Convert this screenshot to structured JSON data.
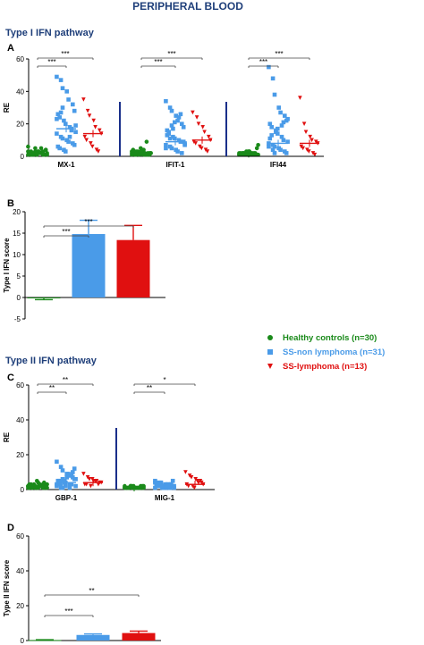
{
  "figure_title": "PERIPHERAL BLOOD",
  "section1_title": "Type I IFN pathway",
  "section2_title": "Type II IFN pathway",
  "colors": {
    "healthy": "#1a8a1a",
    "ss_non": "#4a9be8",
    "ss_lymph": "#e01010",
    "title": "#1f3f7a",
    "axis": "#000000",
    "divider": "#1a2f8a"
  },
  "legend": [
    {
      "label": "Healthy controls (n=30)",
      "marker": "circle",
      "color": "#1a8a1a"
    },
    {
      "label": "SS-non lymphoma (n=31)",
      "marker": "square",
      "color": "#4a9be8"
    },
    {
      "label": "SS-lymphoma (n=13)",
      "marker": "triangle-down",
      "color": "#e01010"
    }
  ],
  "chart_data": [
    {
      "panel": "A",
      "type": "scatter",
      "ylabel": "RE",
      "ylim": [
        0,
        60
      ],
      "yticks": [
        0,
        20,
        40,
        60
      ],
      "groups": [
        {
          "name": "MX-1",
          "medians": [
            2,
            17,
            14
          ],
          "significance": [
            {
              "label": "***",
              "from": 0,
              "to": 1
            },
            {
              "label": "***",
              "from": 0,
              "to": 2
            }
          ]
        },
        {
          "name": "IFIT-1",
          "medians": [
            2,
            9,
            10
          ],
          "significance": [
            {
              "label": "***",
              "from": 0,
              "to": 1
            },
            {
              "label": "***",
              "from": 0,
              "to": 2
            }
          ]
        },
        {
          "name": "IFI44",
          "medians": [
            1.5,
            8,
            8
          ],
          "significance": [
            {
              "label": "***",
              "from": 0,
              "to": 1
            },
            {
              "label": "***",
              "from": 0,
              "to": 2
            }
          ]
        }
      ],
      "points": [
        [
          [
            1,
            1.5,
            2,
            3,
            2.5,
            1,
            4,
            2,
            3,
            5,
            1,
            2,
            3,
            1,
            6,
            2,
            1,
            3,
            2,
            1,
            4,
            2,
            1,
            3,
            2,
            5,
            1,
            2,
            3,
            1
          ],
          [
            49,
            47,
            42,
            40,
            35,
            32,
            28,
            26,
            24,
            22,
            20,
            18,
            17,
            15,
            14,
            12,
            11,
            10,
            9,
            8,
            7,
            6,
            5,
            4,
            3,
            12,
            16,
            19,
            23,
            27,
            30
          ],
          [
            35,
            28,
            25,
            22,
            18,
            16,
            14,
            12,
            10,
            8,
            6,
            4,
            3
          ]
        ],
        [
          [
            2,
            1,
            3,
            2,
            4,
            1,
            2,
            3,
            1,
            2,
            5,
            1,
            9,
            2,
            3,
            1,
            2,
            3,
            1,
            2,
            1,
            4,
            2,
            1,
            3,
            2,
            1,
            2,
            1,
            3
          ],
          [
            34,
            30,
            28,
            25,
            22,
            20,
            18,
            16,
            14,
            12,
            11,
            10,
            9,
            8,
            7,
            6,
            5,
            4,
            3,
            2,
            9,
            13,
            15,
            17,
            21,
            24,
            26,
            7,
            5,
            11,
            19
          ],
          [
            27,
            24,
            20,
            18,
            15,
            12,
            10,
            9,
            8,
            6,
            5,
            4,
            3
          ]
        ],
        [
          [
            1,
            2,
            1,
            3,
            2,
            1,
            5,
            2,
            1,
            3,
            1,
            2,
            1,
            7,
            1,
            2,
            1,
            3,
            1,
            2,
            1,
            1,
            2,
            1,
            3,
            1,
            2,
            1,
            2,
            1
          ],
          [
            55,
            48,
            38,
            30,
            27,
            25,
            22,
            20,
            18,
            16,
            14,
            12,
            10,
            9,
            8,
            7,
            6,
            5,
            4,
            3,
            2,
            11,
            13,
            15,
            17,
            19,
            21,
            23,
            6,
            4,
            2
          ],
          [
            36,
            20,
            15,
            12,
            10,
            9,
            8,
            6,
            5,
            4,
            3,
            2,
            1
          ]
        ]
      ]
    },
    {
      "panel": "B",
      "type": "bar",
      "ylabel": "Type I IFN score",
      "ylim": [
        -5,
        20
      ],
      "yticks": [
        -5,
        0,
        5,
        10,
        15,
        20
      ],
      "values": [
        -0.2,
        14.8,
        13.4
      ],
      "errors": [
        0.3,
        3.2,
        3.4
      ],
      "significance": [
        {
          "label": "***",
          "from": 0,
          "to": 1
        },
        {
          "label": "***",
          "from": 0,
          "to": 2
        }
      ]
    },
    {
      "panel": "C",
      "type": "scatter",
      "ylabel": "RE",
      "ylim": [
        0,
        60
      ],
      "yticks": [
        0,
        20,
        40,
        60
      ],
      "groups": [
        {
          "name": "GBP-1",
          "medians": [
            2,
            4,
            4
          ],
          "significance": [
            {
              "label": "**",
              "from": 0,
              "to": 1
            },
            {
              "label": "**",
              "from": 0,
              "to": 2
            }
          ]
        },
        {
          "name": "MIG-1",
          "medians": [
            1,
            2,
            3
          ],
          "significance": [
            {
              "label": "**",
              "from": 0,
              "to": 1
            },
            {
              "label": "*",
              "from": 0,
              "to": 2
            }
          ]
        }
      ],
      "points": [
        [
          [
            1,
            2,
            3,
            1,
            2,
            4,
            1,
            3,
            2,
            1,
            5,
            2,
            1,
            3,
            2,
            1,
            2,
            4,
            3,
            1,
            2,
            1,
            3,
            2,
            1,
            2,
            3,
            1,
            2,
            1
          ],
          [
            16,
            13,
            11,
            9,
            8,
            7,
            6,
            5,
            5,
            4,
            4,
            3,
            3,
            2,
            2,
            1,
            6,
            7,
            9,
            10,
            12,
            3,
            4,
            5,
            2,
            1,
            8,
            6,
            3,
            2,
            1
          ],
          [
            9,
            7,
            6,
            5,
            5,
            4,
            4,
            3,
            3,
            2,
            6,
            5,
            3
          ]
        ],
        [
          [
            1,
            1,
            2,
            1,
            1,
            2,
            1,
            1,
            1,
            2,
            1,
            1,
            1,
            2,
            1,
            1,
            2,
            1,
            1,
            1,
            2,
            1,
            1,
            1,
            2,
            1,
            1,
            1,
            2,
            1
          ],
          [
            5,
            4,
            4,
            3,
            3,
            3,
            2,
            2,
            2,
            2,
            1,
            1,
            1,
            1,
            4,
            3,
            2,
            1,
            2,
            3,
            5,
            4,
            2,
            1,
            2,
            3,
            1,
            2,
            1,
            3,
            2
          ],
          [
            10,
            8,
            7,
            6,
            5,
            4,
            3,
            3,
            2,
            2,
            1,
            4,
            5
          ]
        ]
      ]
    },
    {
      "panel": "D",
      "type": "bar",
      "ylabel": "Type II IFN score",
      "ylim": [
        0,
        60
      ],
      "yticks": [
        0,
        20,
        40,
        60
      ],
      "values": [
        0.3,
        3.2,
        4.3
      ],
      "errors": [
        0.2,
        0.6,
        1.1
      ],
      "significance": [
        {
          "label": "***",
          "from": 0,
          "to": 1
        },
        {
          "label": "**",
          "from": 0,
          "to": 2
        }
      ]
    }
  ]
}
